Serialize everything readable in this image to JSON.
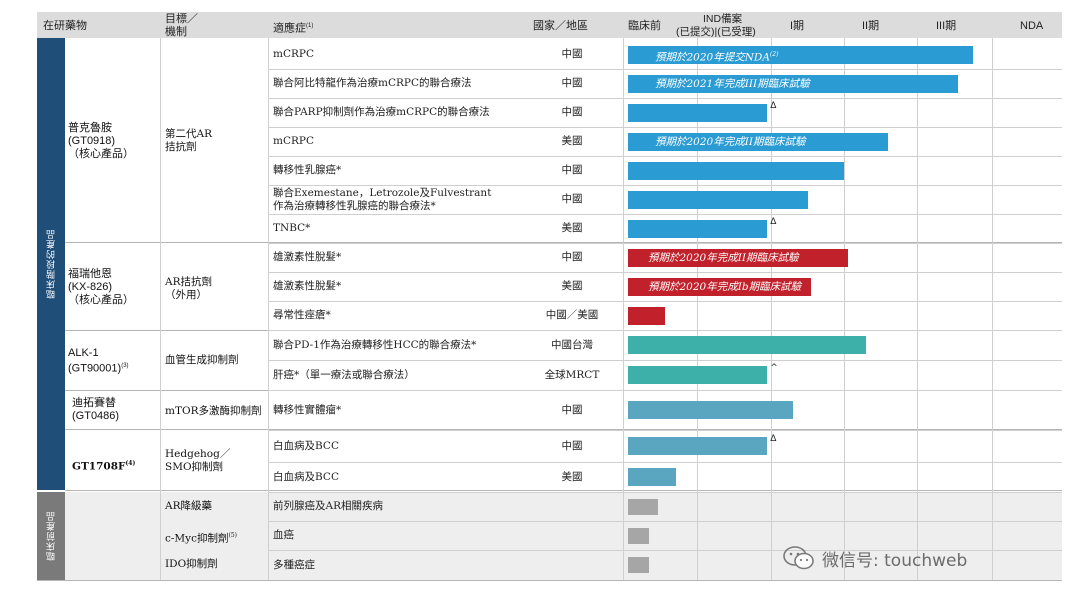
{
  "header": {
    "drug": "在研藥物",
    "target_line1": "目標／",
    "target_line2": "機制",
    "indication": "適應症",
    "indication_note": "(1)",
    "region": "國家／地區",
    "preclinical": "臨床前",
    "ind_line1": "IND備案",
    "ind_line2": "(已提交)|(已受理)",
    "phase1": "I期",
    "phase2": "II期",
    "phase3": "III期",
    "nda": "NDA"
  },
  "side_labels": {
    "clinical": "臨床階段的產品",
    "preclinical": "臨床前產品"
  },
  "drugs": [
    {
      "name": "普克魯胺\n(GT0918)\n（核心產品）",
      "mechanism": "第二代AR\n拮抗劑"
    },
    {
      "name": "福瑞他恩\n(KX-826)\n（核心產品）",
      "mechanism": "AR拮抗劑\n（外用）"
    },
    {
      "name": "ALK-1\n(GT90001)",
      "name_note": "(3)",
      "mechanism": "血管生成抑制劑"
    },
    {
      "name": "迪拓賽替\n(GT0486)",
      "mechanism": "mTOR多激酶抑制劑"
    },
    {
      "name": "GT1708F",
      "name_note": "(4)",
      "mechanism": "Hedgehog／\nSMO抑制劑"
    },
    {
      "name": "",
      "mechanism": "AR降級藥"
    },
    {
      "name": "",
      "mechanism": "c-Myc抑制劑",
      "mechanism_note": "(5)"
    },
    {
      "name": "",
      "mechanism": "IDO抑制劑"
    }
  ],
  "chart_data": {
    "type": "table",
    "stages": [
      "臨床前",
      "IND備案",
      "I期",
      "II期",
      "III期",
      "NDA"
    ],
    "rows": [
      {
        "indication": "mCRPC",
        "region": "中國",
        "progress": 4.75,
        "label": "預期於2020年提交NDA",
        "label_note": "(2)",
        "color": "#2b9bd3"
      },
      {
        "indication": "聯合阿比特龍作為治療mCRPC的聯合療法",
        "region": "中國",
        "progress": 4.55,
        "label": "預期於2021年完成III期臨床試驗",
        "color": "#2b9bd3"
      },
      {
        "indication": "聯合PARP抑制劑作為治療mCRPC的聯合療法",
        "region": "中國",
        "progress": 1.95,
        "mark": "Δ",
        "color": "#2b9bd3"
      },
      {
        "indication": "mCRPC",
        "region": "美國",
        "progress": 3.6,
        "label": "預期於2020年完成II期臨床試驗",
        "color": "#2b9bd3"
      },
      {
        "indication": "轉移性乳腺癌*",
        "region": "中國",
        "progress": 3.0,
        "color": "#2b9bd3"
      },
      {
        "indication": "聯合Exemestane，Letrozole及Fulvestrant\n作為治療轉移性乳腺癌的聯合療法*",
        "region": "中國",
        "progress": 2.5,
        "color": "#2b9bd3"
      },
      {
        "indication": "TNBC*",
        "region": "美國",
        "progress": 1.95,
        "mark": "Δ",
        "color": "#2b9bd3"
      },
      {
        "indication": "雄激素性脫髮*",
        "region": "中國",
        "progress": 3.05,
        "label": "預期於2020年完成II期臨床試驗",
        "color": "#c0212b"
      },
      {
        "indication": "雄激素性脫髮*",
        "region": "美國",
        "progress": 2.55,
        "label": "預期於2020年完成Ib期臨床試驗",
        "color": "#c0212b"
      },
      {
        "indication": "尋常性痤瘡*",
        "region": "中國／美國",
        "progress": 0.55,
        "color": "#c0212b"
      },
      {
        "indication": "聯合PD-1作為治療轉移性HCC的聯合療法*",
        "region": "中國台灣",
        "progress": 3.3,
        "color": "#3db1a9"
      },
      {
        "indication": "肝癌*（單一療法或聯合療法）",
        "region": "全球MRCT",
        "progress": 1.95,
        "mark": "^",
        "color": "#3db1a9"
      },
      {
        "indication": "轉移性實體瘤*",
        "region": "中國",
        "progress": 2.3,
        "color": "#5aa6c0"
      },
      {
        "indication": "白血病及BCC",
        "region": "中國",
        "progress": 1.95,
        "mark": "Δ",
        "color": "#5aa6c0"
      },
      {
        "indication": "白血病及BCC",
        "region": "美國",
        "progress": 0.7,
        "color": "#5aa6c0"
      },
      {
        "indication": "前列腺癌及AR相關疾病",
        "region": "",
        "progress": 0.45,
        "color": "#a6a6a6"
      },
      {
        "indication": "血癌",
        "region": "",
        "progress": 0.33,
        "color": "#a6a6a6"
      },
      {
        "indication": "多種癌症",
        "region": "",
        "progress": 0.33,
        "color": "#a6a6a6"
      }
    ]
  },
  "watermark": {
    "text": "微信号: touchweb",
    "icon": "wechat-icon"
  }
}
